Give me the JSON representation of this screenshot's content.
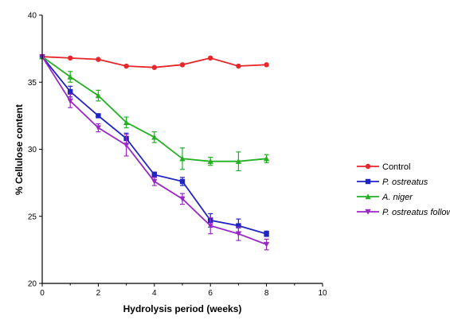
{
  "chart_data": {
    "type": "line",
    "title": "",
    "xlabel": "Hydrolysis period (weeks)",
    "ylabel": "% Cellulose content",
    "xlim": [
      0,
      10
    ],
    "ylim": [
      20,
      40
    ],
    "xticks": [
      0,
      2,
      4,
      6,
      8,
      10
    ],
    "yticks": [
      20,
      25,
      30,
      35,
      40
    ],
    "grid": false,
    "legend_position": "right",
    "x": [
      0,
      1,
      2,
      3,
      4,
      5,
      6,
      7,
      8
    ],
    "series": [
      {
        "name": "Control",
        "italic": false,
        "color": "#e8262b",
        "marker": "circle",
        "values": [
          36.9,
          36.8,
          36.7,
          36.2,
          36.1,
          36.3,
          36.8,
          36.2,
          36.3
        ],
        "errors": [
          0,
          0,
          0,
          0,
          0,
          0,
          0,
          0,
          0
        ]
      },
      {
        "name": "P. ostreatus",
        "italic": true,
        "color": "#1f24c4",
        "marker": "square",
        "values": [
          36.9,
          34.3,
          32.5,
          30.8,
          28.1,
          27.6,
          24.7,
          24.3,
          23.7
        ],
        "errors": [
          0,
          0.4,
          0.1,
          0.4,
          0.2,
          0.3,
          0.5,
          0.5,
          0.2
        ]
      },
      {
        "name": "A. niger",
        "italic": true,
        "color": "#23b023",
        "marker": "triangle-up",
        "values": [
          36.9,
          35.4,
          34.0,
          32.0,
          30.9,
          29.3,
          29.1,
          29.1,
          29.3
        ],
        "errors": [
          0,
          0.4,
          0.4,
          0.4,
          0.4,
          0.8,
          0.3,
          0.7,
          0.3
        ]
      },
      {
        "name": "P. ostreatus followed by A. niger",
        "italic": true,
        "color": "#9b27c6",
        "marker": "triangle-down",
        "values": [
          36.9,
          33.6,
          31.6,
          30.3,
          27.6,
          26.3,
          24.3,
          23.7,
          22.9
        ],
        "errors": [
          0,
          0.5,
          0.3,
          0.8,
          0.3,
          0.4,
          0.6,
          0.5,
          0.4
        ]
      }
    ]
  }
}
